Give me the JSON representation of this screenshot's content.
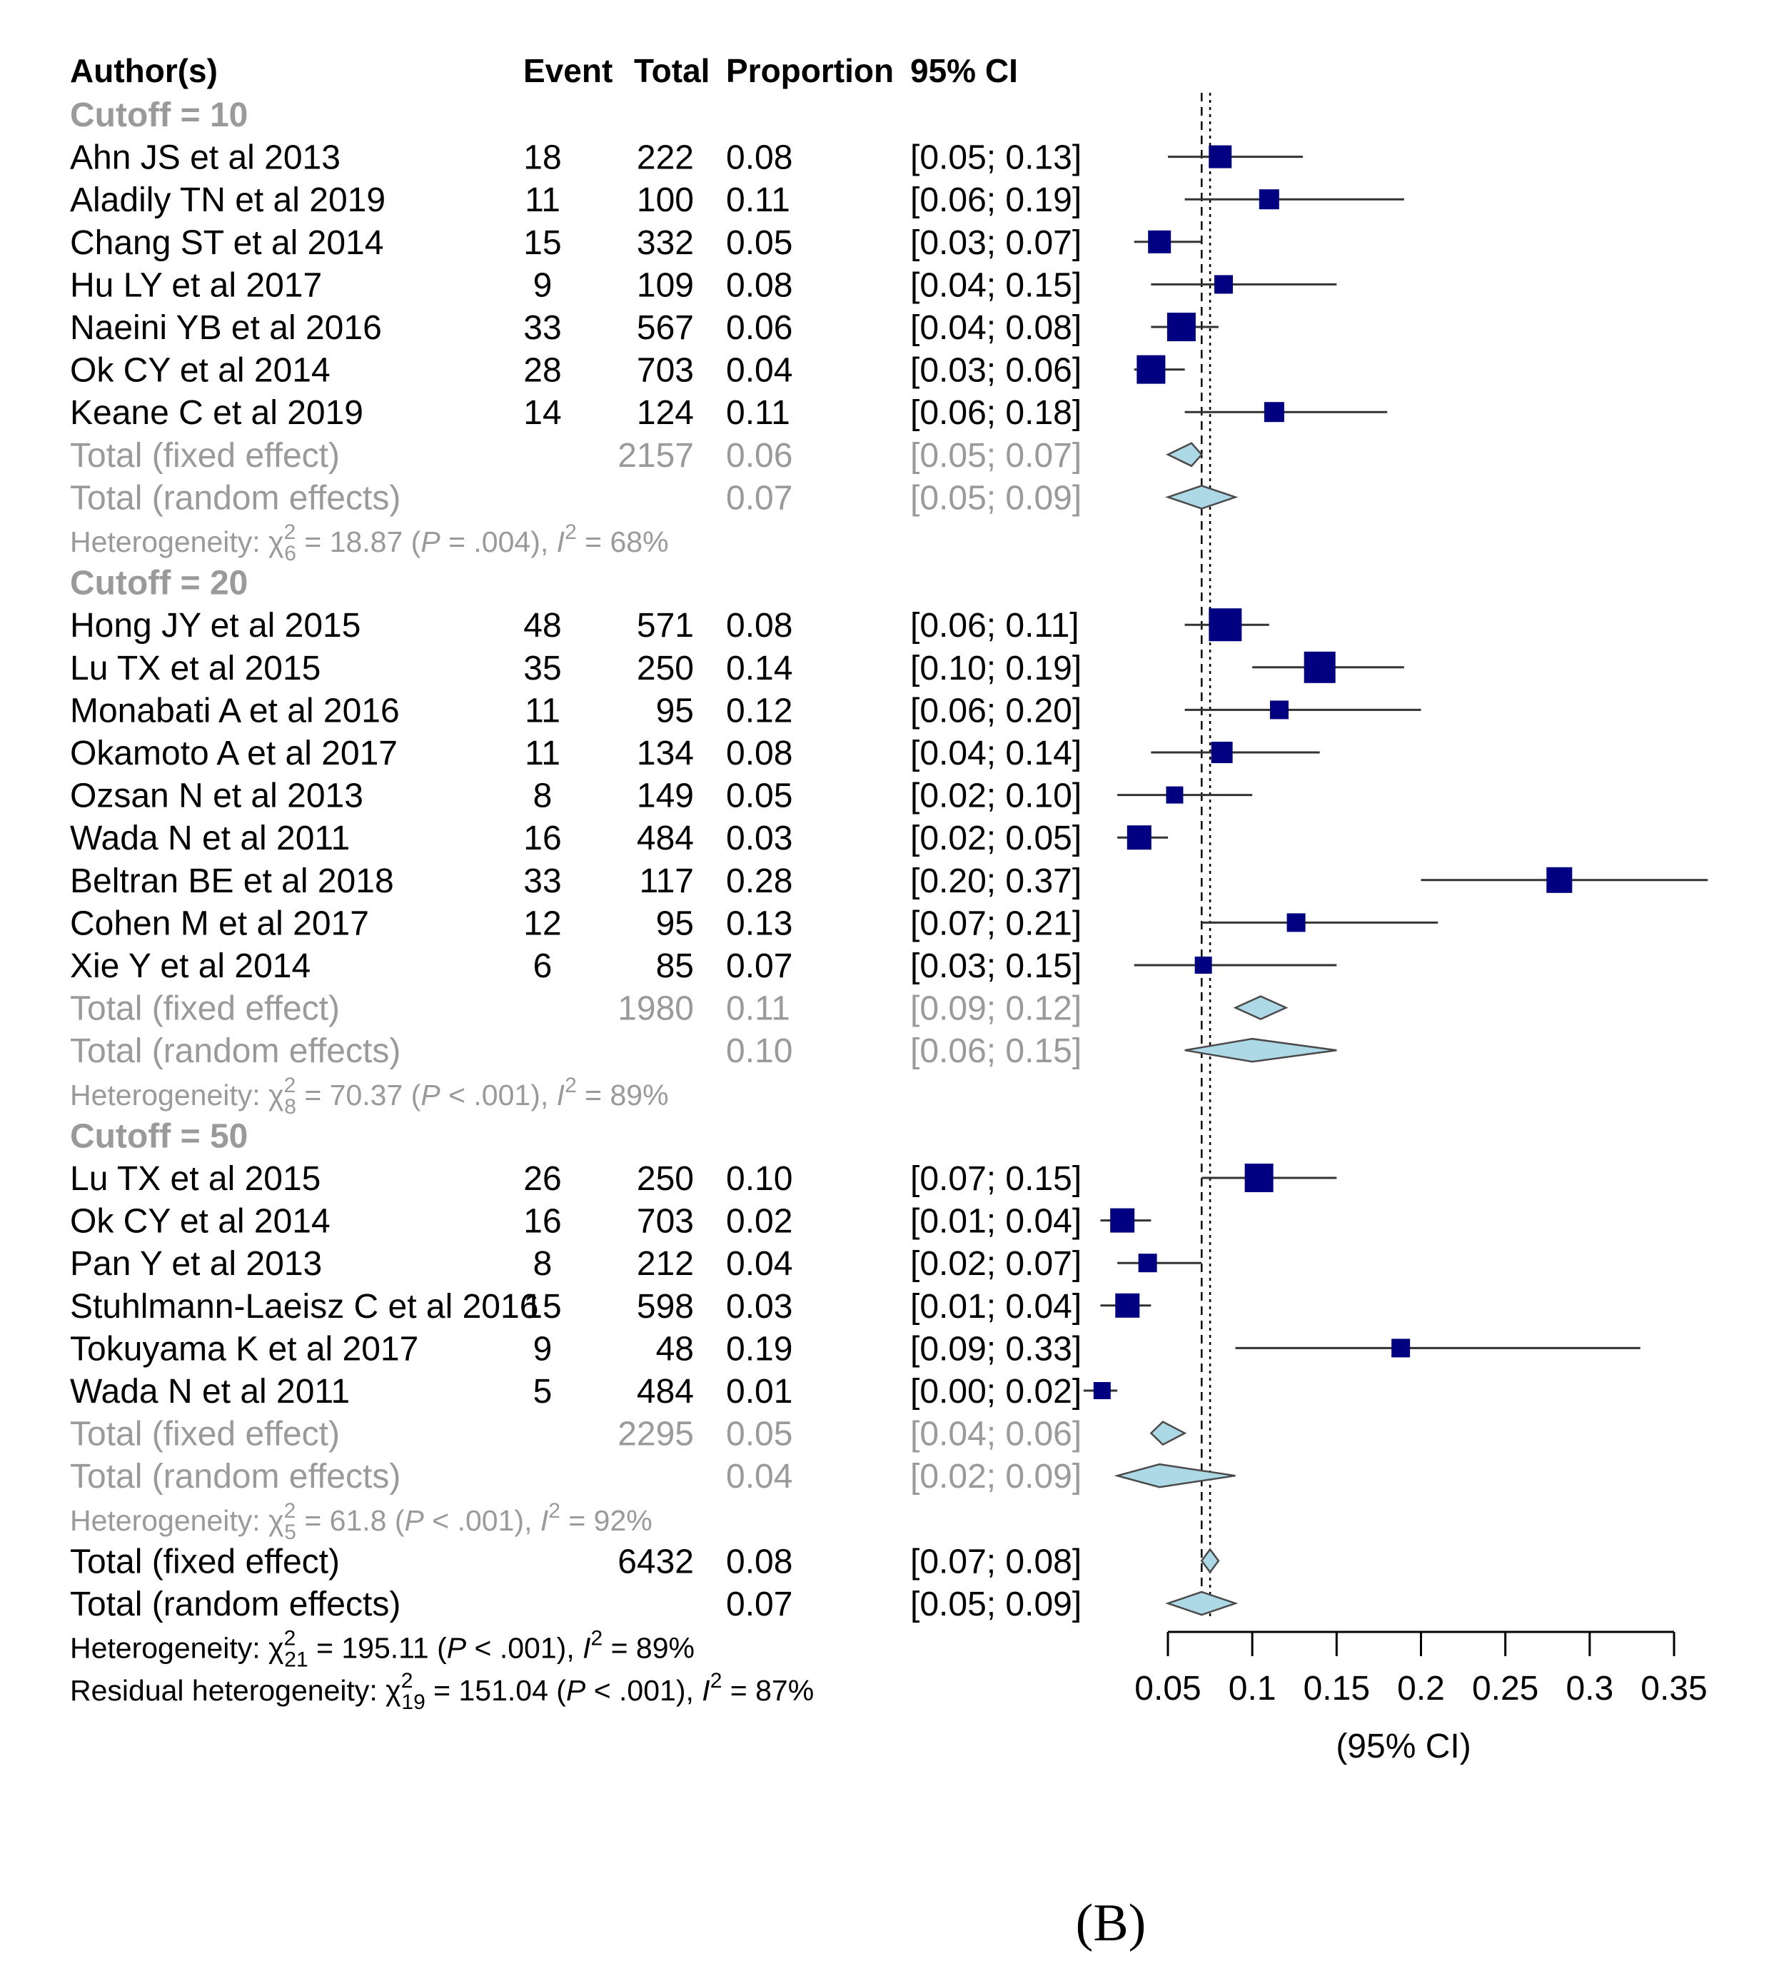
{
  "chart_data": {
    "type": "forest",
    "columns": {
      "author": "Author(s)",
      "event": "Event",
      "total": "Total",
      "proportion": "Proportion",
      "ci": "95% CI"
    },
    "xaxis": {
      "ticks": [
        0.05,
        0.1,
        0.15,
        0.2,
        0.25,
        0.3,
        0.35
      ],
      "tick_labels": [
        "0.05",
        "0.1",
        "0.15",
        "0.2",
        "0.25",
        "0.3",
        "0.35"
      ],
      "label": "(95% CI)",
      "range": [
        0.05,
        0.35
      ]
    },
    "fixed_effect_line": 0.075,
    "random_effects_line": 0.07,
    "rows": [
      {
        "kind": "group",
        "label": "Cutoff = 10"
      },
      {
        "kind": "study",
        "author": "Ahn JS et al 2013",
        "event": "18",
        "total": "222",
        "prop": "0.08",
        "ci": "[0.05; 0.13]",
        "est": 0.081,
        "lo": 0.05,
        "hi": 0.13,
        "weight": 0.9
      },
      {
        "kind": "study",
        "author": "Aladily TN et al 2019",
        "event": "11",
        "total": "100",
        "prop": "0.11",
        "ci": "[0.06; 0.19]",
        "est": 0.11,
        "lo": 0.06,
        "hi": 0.19,
        "weight": 0.7
      },
      {
        "kind": "study",
        "author": "Chang ST et al 2014",
        "event": "15",
        "total": "332",
        "prop": "0.05",
        "ci": "[0.03; 0.07]",
        "est": 0.045,
        "lo": 0.03,
        "hi": 0.07,
        "weight": 0.9
      },
      {
        "kind": "study",
        "author": "Hu LY et al 2017",
        "event": "9",
        "total": "109",
        "prop": "0.08",
        "ci": "[0.04; 0.15]",
        "est": 0.083,
        "lo": 0.04,
        "hi": 0.15,
        "weight": 0.6
      },
      {
        "kind": "study",
        "author": "Naeini YB et al 2016",
        "event": "33",
        "total": "567",
        "prop": "0.06",
        "ci": "[0.04; 0.08]",
        "est": 0.058,
        "lo": 0.04,
        "hi": 0.08,
        "weight": 1.3
      },
      {
        "kind": "study",
        "author": "Ok CY et al 2014",
        "event": "28",
        "total": "703",
        "prop": "0.04",
        "ci": "[0.03; 0.06]",
        "est": 0.04,
        "lo": 0.03,
        "hi": 0.06,
        "weight": 1.3
      },
      {
        "kind": "study",
        "author": "Keane C et al 2019",
        "event": "14",
        "total": "124",
        "prop": "0.11",
        "ci": "[0.06; 0.18]",
        "est": 0.113,
        "lo": 0.06,
        "hi": 0.18,
        "weight": 0.7
      },
      {
        "kind": "fixed",
        "label": "Total (fixed effect)",
        "total": "2157",
        "prop": "0.06",
        "ci": "[0.05; 0.07]",
        "est": 0.064,
        "lo": 0.05,
        "hi": 0.07,
        "grey": true
      },
      {
        "kind": "random",
        "label": "Total (random effects)",
        "total": "",
        "prop": "0.07",
        "ci": "[0.05; 0.09]",
        "est": 0.07,
        "lo": 0.05,
        "hi": 0.09,
        "grey": true
      },
      {
        "kind": "het",
        "grey": true,
        "pre": "Heterogeneity: χ",
        "sup": "2",
        "sub": "6",
        "mid": " = 18.87 (",
        "p": "P",
        "post": " = .004), ",
        "i": "I",
        "isup": "2",
        "end": " = 68%"
      },
      {
        "kind": "group",
        "label": "Cutoff = 20"
      },
      {
        "kind": "study",
        "author": "Hong JY et al 2015",
        "event": "48",
        "total": "571",
        "prop": "0.08",
        "ci": "[0.06; 0.11]",
        "est": 0.084,
        "lo": 0.06,
        "hi": 0.11,
        "weight": 1.6
      },
      {
        "kind": "study",
        "author": "Lu TX et al 2015",
        "event": "35",
        "total": "250",
        "prop": "0.14",
        "ci": "[0.10; 0.19]",
        "est": 0.14,
        "lo": 0.1,
        "hi": 0.19,
        "weight": 1.5
      },
      {
        "kind": "study",
        "author": "Monabati A et al 2016",
        "event": "11",
        "total": "95",
        "prop": "0.12",
        "ci": "[0.06; 0.20]",
        "est": 0.116,
        "lo": 0.06,
        "hi": 0.2,
        "weight": 0.6
      },
      {
        "kind": "study",
        "author": "Okamoto A et al 2017",
        "event": "11",
        "total": "134",
        "prop": "0.08",
        "ci": "[0.04; 0.14]",
        "est": 0.082,
        "lo": 0.04,
        "hi": 0.14,
        "weight": 0.8
      },
      {
        "kind": "study",
        "author": "Ozsan N et al 2013",
        "event": "8",
        "total": "149",
        "prop": "0.05",
        "ci": "[0.02; 0.10]",
        "est": 0.054,
        "lo": 0.02,
        "hi": 0.1,
        "weight": 0.5
      },
      {
        "kind": "study",
        "author": "Wada N et al 2011",
        "event": "16",
        "total": "484",
        "prop": "0.03",
        "ci": "[0.02; 0.05]",
        "est": 0.033,
        "lo": 0.02,
        "hi": 0.05,
        "weight": 1.0
      },
      {
        "kind": "study",
        "author": "Beltran BE et al 2018",
        "event": "33",
        "total": "117",
        "prop": "0.28",
        "ci": "[0.20; 0.37]",
        "est": 0.282,
        "lo": 0.2,
        "hi": 0.37,
        "weight": 1.1
      },
      {
        "kind": "study",
        "author": "Cohen M et al 2017",
        "event": "12",
        "total": "95",
        "prop": "0.13",
        "ci": "[0.07; 0.21]",
        "est": 0.126,
        "lo": 0.07,
        "hi": 0.21,
        "weight": 0.6
      },
      {
        "kind": "study",
        "author": "Xie Y et al 2014",
        "event": "6",
        "total": "85",
        "prop": "0.07",
        "ci": "[0.03; 0.15]",
        "est": 0.071,
        "lo": 0.03,
        "hi": 0.15,
        "weight": 0.5
      },
      {
        "kind": "fixed",
        "label": "Total (fixed effect)",
        "total": "1980",
        "prop": "0.11",
        "ci": "[0.09; 0.12]",
        "est": 0.105,
        "lo": 0.09,
        "hi": 0.12,
        "grey": true
      },
      {
        "kind": "random",
        "label": "Total (random effects)",
        "total": "",
        "prop": "0.10",
        "ci": "[0.06; 0.15]",
        "est": 0.1,
        "lo": 0.06,
        "hi": 0.15,
        "grey": true
      },
      {
        "kind": "het",
        "grey": true,
        "pre": "Heterogeneity: χ",
        "sup": "2",
        "sub": "8",
        "mid": " = 70.37 (",
        "p": "P",
        "post": " < .001), ",
        "i": "I",
        "isup": "2",
        "end": " = 89%"
      },
      {
        "kind": "group",
        "label": "Cutoff = 50"
      },
      {
        "kind": "study",
        "author": "Lu TX et al 2015",
        "event": "26",
        "total": "250",
        "prop": "0.10",
        "ci": "[0.07; 0.15]",
        "est": 0.104,
        "lo": 0.07,
        "hi": 0.15,
        "weight": 1.3
      },
      {
        "kind": "study",
        "author": "Ok CY et al 2014",
        "event": "16",
        "total": "703",
        "prop": "0.02",
        "ci": "[0.01; 0.04]",
        "est": 0.023,
        "lo": 0.01,
        "hi": 0.04,
        "weight": 1.0
      },
      {
        "kind": "study",
        "author": "Pan Y et al 2013",
        "event": "8",
        "total": "212",
        "prop": "0.04",
        "ci": "[0.02; 0.07]",
        "est": 0.038,
        "lo": 0.02,
        "hi": 0.07,
        "weight": 0.6
      },
      {
        "kind": "study",
        "author": "Stuhlmann-Laeisz C et al 2016",
        "event": "15",
        "total": "598",
        "prop": "0.03",
        "ci": "[0.01; 0.04]",
        "est": 0.026,
        "lo": 0.01,
        "hi": 0.04,
        "weight": 1.0
      },
      {
        "kind": "study",
        "author": "Tokuyama K et al 2017",
        "event": "9",
        "total": "48",
        "prop": "0.19",
        "ci": "[0.09; 0.33]",
        "est": 0.188,
        "lo": 0.09,
        "hi": 0.33,
        "weight": 0.6
      },
      {
        "kind": "study",
        "author": "Wada N et al 2011",
        "event": "5",
        "total": "484",
        "prop": "0.01",
        "ci": "[0.00; 0.02]",
        "est": 0.011,
        "lo": 0.0,
        "hi": 0.02,
        "weight": 0.5
      },
      {
        "kind": "fixed",
        "label": "Total (fixed effect)",
        "total": "2295",
        "prop": "0.05",
        "ci": "[0.04; 0.06]",
        "est": 0.047,
        "lo": 0.04,
        "hi": 0.06,
        "grey": true
      },
      {
        "kind": "random",
        "label": "Total (random effects)",
        "total": "",
        "prop": "0.04",
        "ci": "[0.02; 0.09]",
        "est": 0.045,
        "lo": 0.02,
        "hi": 0.09,
        "grey": true
      },
      {
        "kind": "het",
        "grey": true,
        "pre": "Heterogeneity: χ",
        "sup": "2",
        "sub": "5",
        "mid": " = 61.8 (",
        "p": "P",
        "post": " < .001), ",
        "i": "I",
        "isup": "2",
        "end": " = 92%"
      },
      {
        "kind": "fixed",
        "label": "Total (fixed effect)",
        "total": "6432",
        "prop": "0.08",
        "ci": "[0.07; 0.08]",
        "est": 0.075,
        "lo": 0.07,
        "hi": 0.08,
        "grey": false
      },
      {
        "kind": "random",
        "label": "Total (random effects)",
        "total": "",
        "prop": "0.07",
        "ci": "[0.05; 0.09]",
        "est": 0.07,
        "lo": 0.05,
        "hi": 0.09,
        "grey": false
      },
      {
        "kind": "het",
        "grey": false,
        "pre": "Heterogeneity: χ",
        "sup": "2",
        "sub": "21",
        "mid": " = 195.11 (",
        "p": "P",
        "post": " < .001), ",
        "i": "I",
        "isup": "2",
        "end": " = 89%"
      },
      {
        "kind": "het",
        "grey": false,
        "pre": "Residual heterogeneity: χ",
        "sup": "2",
        "sub": "19",
        "mid": " = 151.04 (",
        "p": "P",
        "post": " < .001), ",
        "i": "I",
        "isup": "2",
        "end": " = 87%"
      }
    ],
    "caption": "(B)",
    "colors": {
      "square": "#000080",
      "diamond_fill": "#add8e6",
      "diamond_stroke": "#4a4a4a",
      "grey_text": "#9a9a9a",
      "line": "#333333"
    }
  }
}
